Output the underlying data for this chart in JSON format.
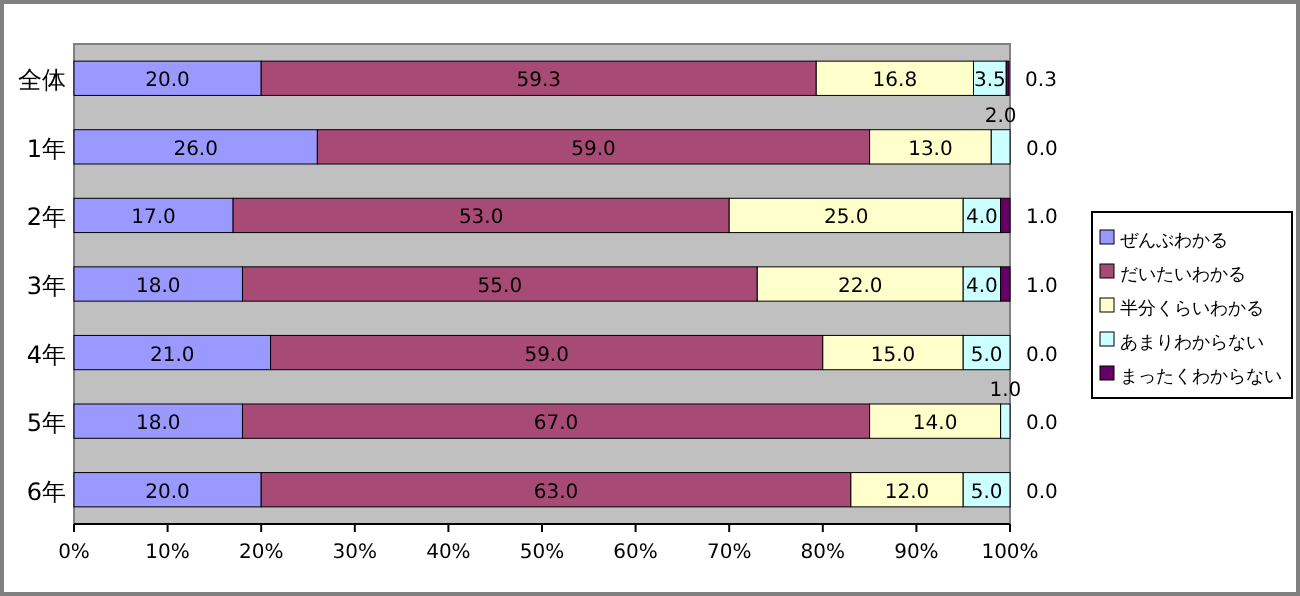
{
  "chart_data": {
    "type": "bar",
    "orientation": "horizontal",
    "stacked": true,
    "legend": "right",
    "grid": false,
    "categories": [
      "全体",
      "1年",
      "2年",
      "3年",
      "4年",
      "5年",
      "6年"
    ],
    "xlim": [
      0,
      100
    ],
    "xticks": [
      {
        "value": 0,
        "label": "0%"
      },
      {
        "value": 10,
        "label": "10%"
      },
      {
        "value": 20,
        "label": "20%"
      },
      {
        "value": 30,
        "label": "30%"
      },
      {
        "value": 40,
        "label": "40%"
      },
      {
        "value": 50,
        "label": "50%"
      },
      {
        "value": 60,
        "label": "60%"
      },
      {
        "value": 70,
        "label": "70%"
      },
      {
        "value": 80,
        "label": "80%"
      },
      {
        "value": 90,
        "label": "90%"
      },
      {
        "value": 100,
        "label": "100%"
      }
    ],
    "series": [
      {
        "name": "ぜんぶわかる",
        "color": "#9999ff",
        "values": [
          20,
          26,
          17,
          18,
          21,
          18,
          20
        ],
        "value_labels": [
          "20.0",
          "26.0",
          "17.0",
          "18.0",
          "21.0",
          "18.0",
          "20.0"
        ]
      },
      {
        "name": "だいたいわかる",
        "color": "#a84a76",
        "values": [
          59.3,
          59,
          53,
          55,
          59,
          67,
          63
        ],
        "value_labels": [
          "59.3",
          "59.0",
          "53.0",
          "55.0",
          "59.0",
          "67.0",
          "63.0"
        ]
      },
      {
        "name": "半分くらいわかる",
        "color": "#ffffcc",
        "values": [
          16.8,
          13,
          25,
          22,
          15,
          14,
          12
        ],
        "value_labels": [
          "16.8",
          "13.0",
          "25.0",
          "22.0",
          "15.0",
          "14.0",
          "12.0"
        ]
      },
      {
        "name": "あまりわからない",
        "color": "#ccffff",
        "values": [
          3.5,
          2,
          4,
          4,
          5,
          1,
          5
        ],
        "value_labels": [
          "3.5",
          "2.0",
          "4.0",
          "4.0",
          "5.0",
          "1.0",
          "5.0"
        ]
      },
      {
        "name": "まったくわからない",
        "color": "#660066",
        "values": [
          0.3,
          0,
          1,
          1,
          0,
          0,
          0
        ],
        "value_labels": [
          "0.3",
          "0.0",
          "1.0",
          "1.0",
          "0.0",
          "0.0",
          "0.0"
        ]
      }
    ]
  }
}
